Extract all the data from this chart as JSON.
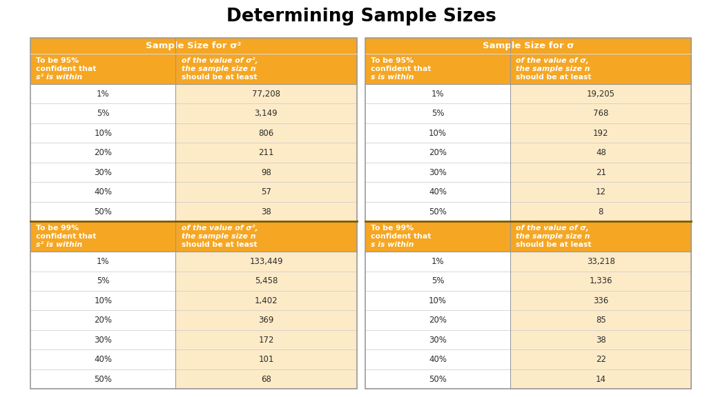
{
  "title": "Determining Sample Sizes",
  "orange": "#F5A623",
  "orange_light": "#FDEBC8",
  "white": "#FFFFFF",
  "dark_text": "#2A2A2A",
  "white_text": "#FFFFFF",
  "bg_color": "#FFFFFF",
  "section1_header": "Sample Size for σ²",
  "section2_header": "Sample Size for σ",
  "col1_95_l1": "To be 95%",
  "col1_95_l2": "confident that",
  "col1_95_l3": "s² is within",
  "col2_95_l1": "of the value of σ²,",
  "col2_95_l2": "the sample size n",
  "col2_95_l3": "should be at least",
  "col3_95_l1": "To be 95%",
  "col3_95_l2": "confident that",
  "col3_95_l3": "s is within",
  "col4_95_l1": "of the value of σ,",
  "col4_95_l2": "the sample size n",
  "col4_95_l3": "should be at least",
  "col1_99_l1": "To be 99%",
  "col1_99_l2": "confident that",
  "col1_99_l3": "s² is within",
  "col3_99_l1": "To be 99%",
  "col3_99_l2": "confident that",
  "col3_99_l3": "s is within",
  "percentages": [
    "1%",
    "5%",
    "10%",
    "20%",
    "30%",
    "40%",
    "50%"
  ],
  "data_95_s2": [
    "77,208",
    "3,149",
    "806",
    "211",
    "98",
    "57",
    "38"
  ],
  "data_95_s": [
    "19,205",
    "768",
    "192",
    "48",
    "21",
    "12",
    "8"
  ],
  "data_99_s2": [
    "133,449",
    "5,458",
    "1,402",
    "369",
    "172",
    "101",
    "68"
  ],
  "data_99_s": [
    "33,218",
    "1,336",
    "336",
    "85",
    "38",
    "22",
    "14"
  ]
}
